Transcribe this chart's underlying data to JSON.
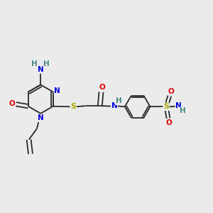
{
  "bg_color": "#ebebeb",
  "bond_color": "#2a2a2a",
  "bond_lw": 1.3,
  "dbl_off": 0.006,
  "atom_colors": {
    "N": "#0000dd",
    "O": "#dd0000",
    "S": "#aaaa00",
    "H": "#4a8888",
    "C": "#2a2a2a"
  },
  "fs": 7.5,
  "fig_size": [
    3.0,
    3.0
  ],
  "dpi": 100,
  "xlim": [
    0.0,
    1.0
  ],
  "ylim": [
    0.0,
    1.0
  ]
}
